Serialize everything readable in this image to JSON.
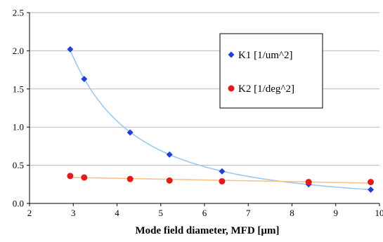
{
  "chart_data": {
    "type": "scatter",
    "title": "",
    "xlabel": "Mode field diameter, MFD [µm]",
    "ylabel": "",
    "xlim": [
      2,
      10
    ],
    "ylim": [
      0,
      2.5
    ],
    "xticks": [
      2,
      3,
      4,
      5,
      6,
      7,
      8,
      9,
      10
    ],
    "yticks": [
      "0.0",
      "0.5",
      "1.0",
      "1.5",
      "2.0",
      "2.5"
    ],
    "grid": "horizontal",
    "legend_position": "right",
    "series": [
      {
        "name": "K1 [1/um^2]",
        "marker": "diamond",
        "color": "#1f3fd6",
        "trend_color": "#9cc8ee",
        "trend_type": "power",
        "x": [
          2.93,
          3.25,
          4.3,
          5.2,
          6.4,
          8.38,
          9.8
        ],
        "y": [
          2.02,
          1.63,
          0.93,
          0.64,
          0.42,
          0.25,
          0.18
        ]
      },
      {
        "name": "K2 [1/deg^2]",
        "marker": "circle",
        "color": "#e51b1b",
        "trend_color": "#f7c28e",
        "trend_type": "linear",
        "x": [
          2.93,
          3.25,
          4.3,
          5.2,
          6.4,
          8.38,
          9.8
        ],
        "y": [
          0.36,
          0.34,
          0.32,
          0.3,
          0.29,
          0.28,
          0.28
        ]
      }
    ]
  }
}
